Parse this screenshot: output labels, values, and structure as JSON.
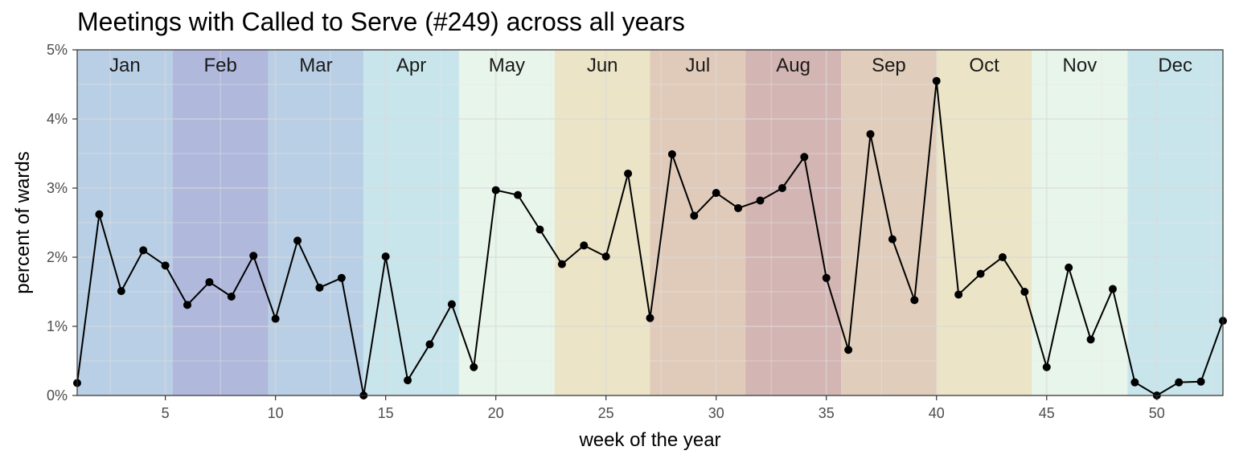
{
  "chart_data": {
    "type": "line",
    "title": "Meetings with Called to Serve (#249) across all years",
    "xlabel": "week of the year",
    "ylabel": "percent of wards",
    "xlim": [
      1,
      53
    ],
    "ylim": [
      0,
      5
    ],
    "x_ticks": [
      5,
      10,
      15,
      20,
      25,
      30,
      35,
      40,
      45,
      50
    ],
    "y_ticks": [
      "0%",
      "1%",
      "2%",
      "3%",
      "4%",
      "5%"
    ],
    "grid": true,
    "months": [
      {
        "label": "Jan",
        "start": 1,
        "end": 5.33,
        "color": "#b9cfe5"
      },
      {
        "label": "Feb",
        "start": 5.33,
        "end": 9.67,
        "color": "#b0b8dc"
      },
      {
        "label": "Mar",
        "start": 9.67,
        "end": 14,
        "color": "#b9cfe5"
      },
      {
        "label": "Apr",
        "start": 14,
        "end": 18.33,
        "color": "#c9e5ec"
      },
      {
        "label": "May",
        "start": 18.33,
        "end": 22.67,
        "color": "#e8f5ea"
      },
      {
        "label": "Jun",
        "start": 22.67,
        "end": 27,
        "color": "#ebe4c6"
      },
      {
        "label": "Jul",
        "start": 27,
        "end": 31.33,
        "color": "#e0cbbb"
      },
      {
        "label": "Aug",
        "start": 31.33,
        "end": 35.67,
        "color": "#d3b5b3"
      },
      {
        "label": "Sep",
        "start": 35.67,
        "end": 40,
        "color": "#e0cdbb"
      },
      {
        "label": "Oct",
        "start": 40,
        "end": 44.33,
        "color": "#ebe4c6"
      },
      {
        "label": "Nov",
        "start": 44.33,
        "end": 48.67,
        "color": "#e8f5ea"
      },
      {
        "label": "Dec",
        "start": 48.67,
        "end": 53,
        "color": "#c9e5ec"
      }
    ],
    "series": [
      {
        "x": [
          1,
          2,
          3,
          4,
          5,
          6,
          7,
          8,
          9,
          10,
          11,
          12,
          13,
          14,
          15,
          16,
          17,
          18,
          19,
          20,
          21,
          22,
          23,
          24,
          25,
          26,
          27,
          28,
          29,
          30,
          31,
          32,
          33,
          34,
          35,
          36,
          37,
          38,
          39,
          40,
          41,
          42,
          43,
          44,
          45,
          46,
          47,
          48,
          49,
          50,
          51,
          52,
          53
        ],
        "values": [
          0.18,
          2.62,
          1.51,
          2.1,
          1.88,
          1.31,
          1.64,
          1.43,
          2.02,
          1.11,
          2.24,
          1.56,
          1.7,
          0.0,
          2.01,
          0.22,
          0.74,
          1.32,
          0.41,
          2.97,
          2.9,
          2.4,
          1.9,
          2.17,
          2.01,
          3.21,
          1.12,
          3.49,
          2.6,
          2.93,
          2.71,
          2.82,
          3.0,
          3.45,
          1.7,
          0.66,
          3.78,
          2.26,
          1.38,
          4.55,
          1.46,
          1.76,
          2.0,
          1.5,
          0.41,
          1.85,
          0.81,
          1.54,
          0.19,
          0.0,
          0.19,
          0.2,
          1.08
        ]
      }
    ]
  }
}
